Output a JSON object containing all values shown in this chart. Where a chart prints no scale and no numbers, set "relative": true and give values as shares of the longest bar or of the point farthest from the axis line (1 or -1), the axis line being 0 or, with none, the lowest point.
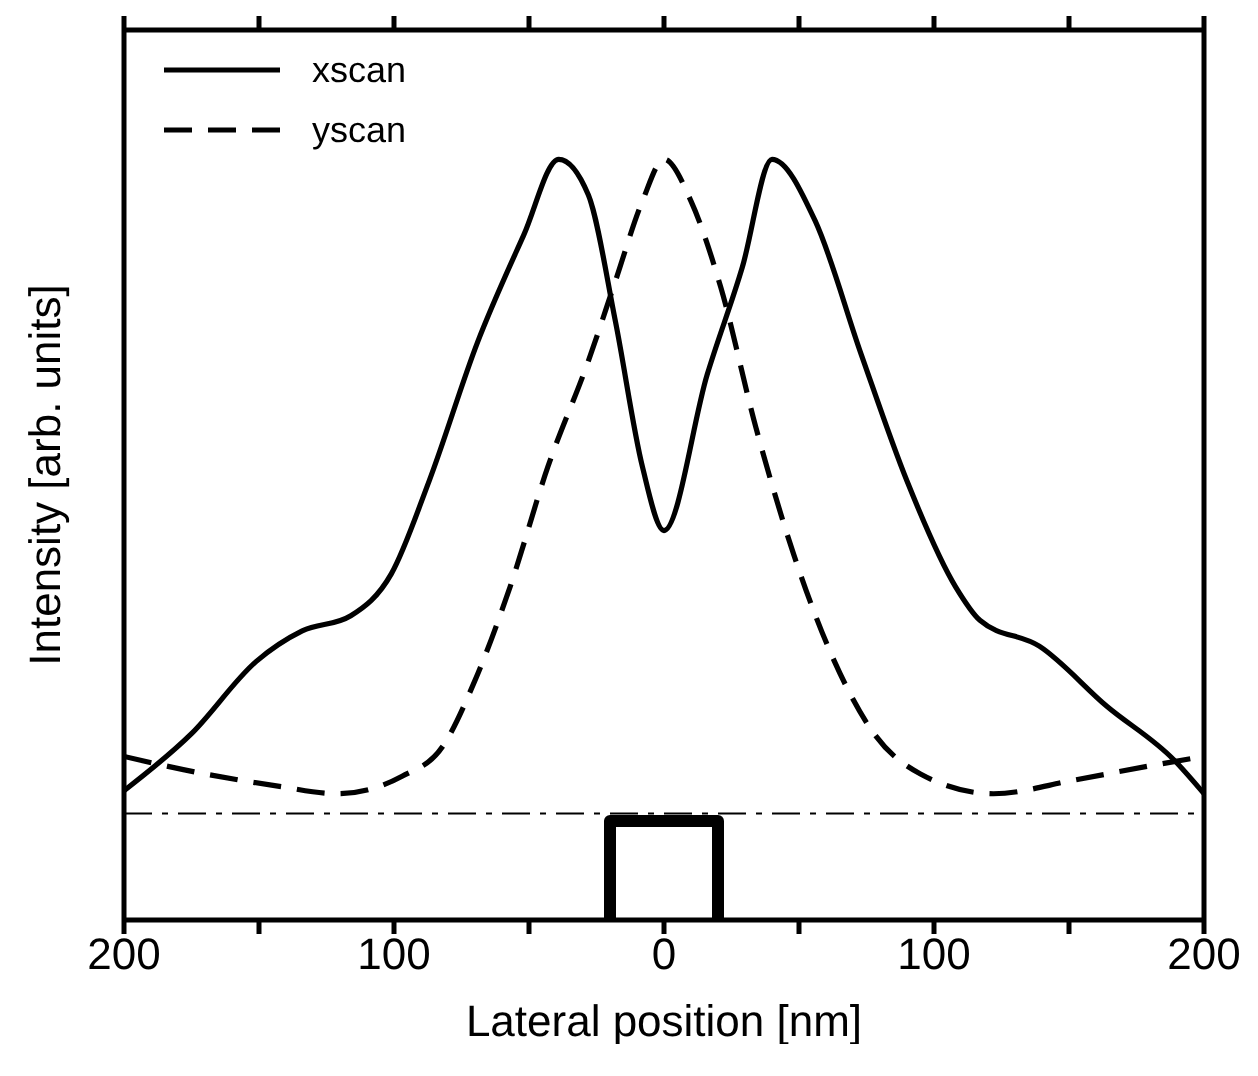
{
  "chart_data": {
    "type": "line",
    "xlabel": "Lateral position [nm]",
    "ylabel": "Intensity [arb. units]",
    "relative": true,
    "xlim": [
      -200,
      200
    ],
    "xticks": [
      {
        "value": -200,
        "label": "200"
      },
      {
        "value": -150,
        "label": null
      },
      {
        "value": -100,
        "label": "100"
      },
      {
        "value": -50,
        "label": null
      },
      0,
      {
        "value": 50,
        "label": null
      },
      {
        "value": 100,
        "label": "100"
      },
      {
        "value": 150,
        "label": null
      },
      {
        "value": 200,
        "label": "200"
      }
    ],
    "legend": "top left",
    "ref_lines": [
      {
        "axis": "y",
        "value": 0.14,
        "color": "#000000",
        "line_style": "dashdot"
      }
    ],
    "series": [
      {
        "name": "xscan",
        "color": "#000000",
        "line_style": "solid",
        "x": [
          -200,
          -175,
          -151,
          -134,
          -116,
          -101,
          -87,
          -69,
          -52,
          -39,
          -28,
          -18,
          -8,
          0,
          16,
          29,
          40,
          56,
          73,
          90,
          108,
          117,
          139,
          164,
          189,
          200
        ],
        "values": [
          0.17,
          0.245,
          0.34,
          0.38,
          0.4,
          0.455,
          0.577,
          0.76,
          0.9,
          1,
          0.953,
          0.787,
          0.596,
          0.512,
          0.717,
          0.858,
          1,
          0.919,
          0.744,
          0.577,
          0.438,
          0.394,
          0.36,
          0.281,
          0.21,
          0.166
        ]
      },
      {
        "name": "yscan",
        "color": "#000000",
        "line_style": "dashed",
        "x": [
          -200,
          -170,
          -143,
          -121,
          -97,
          -82,
          -70,
          -57,
          -43,
          -28,
          -18,
          -8,
          0,
          10,
          21,
          34,
          48,
          63,
          78,
          95,
          122,
          152,
          179,
          200
        ],
        "values": [
          0.215,
          0.192,
          0.176,
          0.166,
          0.189,
          0.228,
          0.315,
          0.438,
          0.596,
          0.735,
          0.84,
          0.945,
          1,
          0.945,
          0.832,
          0.648,
          0.481,
          0.341,
          0.244,
          0.192,
          0.166,
          0.184,
          0.202,
          0.215
        ]
      },
      {
        "color": "#000000",
        "line_style": "solid",
        "x": [
          -20,
          -20,
          20,
          20
        ],
        "values": [
          0,
          0.13,
          0.13,
          0
        ]
      }
    ]
  }
}
